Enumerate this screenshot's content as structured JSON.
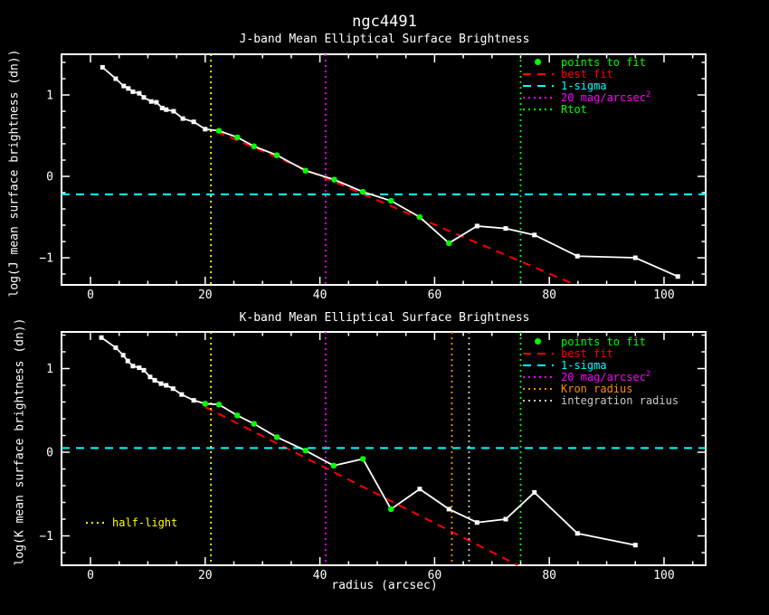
{
  "title": "ngc4491",
  "xlabel": "radius (arcsec)",
  "colors": {
    "background": "#000000",
    "axis": "#ffffff",
    "profile": "#ffffff",
    "points_to_fit": "#00ff00",
    "best_fit": "#ff0000",
    "one_sigma": "#00ffff",
    "mag20": "#ff00ff",
    "rtot": "#00ff00",
    "kron_radius": "#ff8c00",
    "integration_radius": "#c8c8c8",
    "half_light": "#ffff00"
  },
  "chart_data": [
    {
      "type": "line",
      "title": "J-band Mean Elliptical Surface Brightness",
      "ylabel": "log(J mean surface brightness (dn))",
      "xlim": [
        -5.05,
        107.26
      ],
      "ylim": [
        -1.333,
        1.5
      ],
      "xticks": [
        0,
        20,
        40,
        60,
        80,
        100
      ],
      "yticks": [
        -1,
        0,
        1
      ],
      "x_minor_step": 5,
      "y_minor_step": 0.2,
      "grid": false,
      "series": [
        {
          "name": "surface-brightness-profile",
          "color": "#ffffff",
          "marker": "square",
          "line": true,
          "x": [
            2.1,
            4.4,
            5.8,
            6.6,
            7.4,
            8.5,
            9.3,
            10.6,
            11.5,
            12.5,
            13.2,
            14.5,
            16.1,
            18,
            20,
            22.4,
            25.6,
            28.5,
            32.5,
            37.5,
            42.5,
            47.5,
            52.4,
            57.4,
            62.5,
            67.4,
            72.4,
            77.4,
            84.9,
            95,
            102.4
          ],
          "y": [
            1.34,
            1.2,
            1.11,
            1.08,
            1.04,
            1.02,
            0.97,
            0.92,
            0.91,
            0.84,
            0.82,
            0.8,
            0.71,
            0.67,
            0.58,
            0.56,
            0.48,
            0.37,
            0.26,
            0.07,
            -0.04,
            -0.19,
            -0.3,
            -0.5,
            -0.82,
            -0.61,
            -0.64,
            -0.72,
            -0.98,
            -1,
            -1.23
          ]
        },
        {
          "name": "points-to-fit",
          "color": "#00ff00",
          "marker": "circle",
          "line": false,
          "x": [
            22.4,
            25.6,
            28.5,
            32.5,
            37.5,
            42.5,
            47.5,
            52.4,
            57.4,
            62.5
          ],
          "y": [
            0.56,
            0.48,
            0.37,
            0.26,
            0.07,
            -0.04,
            -0.19,
            -0.3,
            -0.5,
            -0.82
          ]
        }
      ],
      "lines": [
        {
          "name": "best-fit",
          "type": "segment",
          "style": "dashed",
          "color": "#ff0000",
          "x1": 22,
          "y1": 0.55,
          "x2": 84.5,
          "y2": -1.33
        },
        {
          "name": "one-sigma",
          "type": "hline",
          "style": "dashed",
          "color": "#00ffff",
          "y": -0.22
        },
        {
          "name": "half-light-radius",
          "type": "vline",
          "style": "dotted",
          "color": "#ffff00",
          "x": 21
        },
        {
          "name": "mag20-arcsec2",
          "type": "vline",
          "style": "dotted",
          "color": "#ff00ff",
          "x": 41
        },
        {
          "name": "rtot",
          "type": "vline",
          "style": "dotted",
          "color": "#00ff00",
          "x": 75
        }
      ],
      "legend": [
        {
          "label": "points to fit",
          "color": "#00ff00",
          "sample": "dot"
        },
        {
          "label": "best fit",
          "color": "#ff0000",
          "sample": "dashed"
        },
        {
          "label": "1-sigma",
          "color": "#00ffff",
          "sample": "dashed"
        },
        {
          "label": "20 mag/arcsec",
          "sup": "2",
          "color": "#ff00ff",
          "sample": "dotted"
        },
        {
          "label": "Rtot",
          "color": "#00ff00",
          "sample": "dotted"
        }
      ]
    },
    {
      "type": "line",
      "title": "K-band Mean Elliptical Surface Brightness",
      "ylabel": "log(K mean surface brightness (dn))",
      "xlim": [
        -5.05,
        107.26
      ],
      "ylim": [
        -1.351,
        1.438
      ],
      "xticks": [
        0,
        20,
        40,
        60,
        80,
        100
      ],
      "yticks": [
        -1,
        0,
        1
      ],
      "x_minor_step": 5,
      "y_minor_step": 0.2,
      "grid": false,
      "series": [
        {
          "name": "surface-brightness-profile",
          "color": "#ffffff",
          "marker": "square",
          "line": true,
          "x": [
            1.9,
            4.4,
            5.7,
            6.5,
            7.4,
            8.5,
            9.3,
            10.4,
            11.2,
            12.3,
            13.2,
            14.4,
            15.9,
            18,
            20,
            22.4,
            25.6,
            28.5,
            32.5,
            37.5,
            42.4,
            47.5,
            52.4,
            57.4,
            62.5,
            67.4,
            72.4,
            77.4,
            84.9,
            95
          ],
          "y": [
            1.37,
            1.25,
            1.16,
            1.09,
            1.03,
            1.01,
            0.98,
            0.9,
            0.86,
            0.82,
            0.8,
            0.76,
            0.69,
            0.62,
            0.58,
            0.57,
            0.44,
            0.34,
            0.18,
            0.02,
            -0.16,
            -0.08,
            -0.68,
            -0.44,
            -0.68,
            -0.84,
            -0.8,
            -0.48,
            -0.97,
            -1.11
          ]
        },
        {
          "name": "points-to-fit",
          "color": "#00ff00",
          "marker": "circle",
          "line": false,
          "x": [
            20,
            22.4,
            25.6,
            28.5,
            32.5,
            37.5,
            42.4,
            47.5,
            52.4
          ],
          "y": [
            0.58,
            0.57,
            0.44,
            0.34,
            0.18,
            0.02,
            -0.16,
            -0.08,
            -0.68
          ]
        }
      ],
      "lines": [
        {
          "name": "best-fit",
          "type": "segment",
          "style": "dashed",
          "color": "#ff0000",
          "x1": 20,
          "y1": 0.54,
          "x2": 74.5,
          "y2": -1.35
        },
        {
          "name": "one-sigma",
          "type": "hline",
          "style": "dashed",
          "color": "#00ffff",
          "y": 0.05
        },
        {
          "name": "half-light-radius",
          "type": "vline",
          "style": "dotted",
          "color": "#ffff00",
          "x": 21
        },
        {
          "name": "mag20-arcsec2",
          "type": "vline",
          "style": "dotted",
          "color": "#ff00ff",
          "x": 41
        },
        {
          "name": "kron-radius",
          "type": "vline",
          "style": "dotted",
          "color": "#ff8c00",
          "x": 63
        },
        {
          "name": "integration-radius",
          "type": "vline",
          "style": "dotted",
          "color": "#c8c8c8",
          "x": 66
        },
        {
          "name": "rtot",
          "type": "vline",
          "style": "dotted",
          "color": "#00ff00",
          "x": 75
        }
      ],
      "legend": [
        {
          "label": "points to fit",
          "color": "#00ff00",
          "sample": "dot"
        },
        {
          "label": "best fit",
          "color": "#ff0000",
          "sample": "dashed"
        },
        {
          "label": "1-sigma",
          "color": "#00ffff",
          "sample": "dashed"
        },
        {
          "label": "20 mag/arcsec",
          "sup": "2",
          "color": "#ff00ff",
          "sample": "dotted"
        },
        {
          "label": "Kron radius",
          "color": "#ff8c00",
          "sample": "dotted"
        },
        {
          "label": "integration radius",
          "color": "#c8c8c8",
          "sample": "dotted"
        }
      ],
      "inner_legend": {
        "label": "half-light",
        "color": "#ffff00",
        "sample": "dotted"
      }
    }
  ]
}
